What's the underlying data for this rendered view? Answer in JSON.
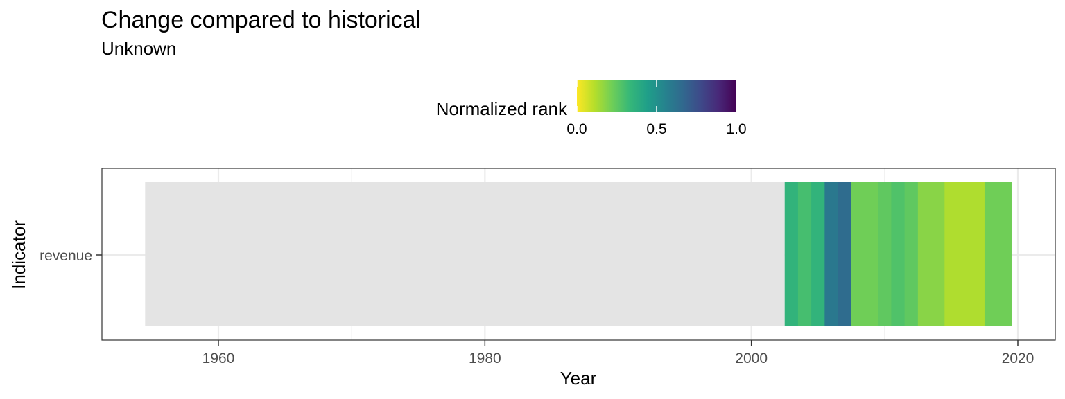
{
  "title": "Change compared to historical",
  "subtitle": "Unknown",
  "legend": {
    "title": "Normalized rank",
    "ticks": [
      "0.0",
      "0.5",
      "1.0"
    ],
    "range": [
      0,
      1
    ],
    "colormap": "viridis (reversed: 0 = yellow, 1 = purple)",
    "stops": [
      "#fde725",
      "#b5de2b",
      "#6ece58",
      "#35b779",
      "#1f9e89",
      "#26828e",
      "#31688e",
      "#3e4989",
      "#482878",
      "#440154"
    ]
  },
  "colors": {
    "missing": "#e4e4e4",
    "grid": "#ebebeb",
    "panel_border": "#333333"
  },
  "chart_data": {
    "type": "heatmap",
    "title": "Change compared to historical",
    "subtitle": "Unknown",
    "xlabel": "Year",
    "ylabel": "Indicator",
    "categories": [
      "revenue"
    ],
    "xlim": [
      1951,
      2019
    ],
    "x_ticks": [
      "1960",
      "1980",
      "2000",
      "2020"
    ],
    "y_ticks": [
      "revenue"
    ],
    "grid": true,
    "legend_position": "top",
    "missing_range": [
      1954.5,
      2002.5
    ],
    "series": [
      {
        "values": [
          {
            "x": 2003,
            "y": 0.35
          },
          {
            "x": 2004,
            "y": 0.3
          },
          {
            "x": 2005,
            "y": 0.35
          },
          {
            "x": 2006,
            "y": 0.6
          },
          {
            "x": 2007,
            "y": 0.65
          },
          {
            "x": 2008,
            "y": 0.22
          },
          {
            "x": 2009,
            "y": 0.22
          },
          {
            "x": 2010,
            "y": 0.25
          },
          {
            "x": 2011,
            "y": 0.28
          },
          {
            "x": 2012,
            "y": 0.25
          },
          {
            "x": 2013,
            "y": 0.18
          },
          {
            "x": 2014,
            "y": 0.18
          },
          {
            "x": 2015,
            "y": 0.12
          },
          {
            "x": 2016,
            "y": 0.12
          },
          {
            "x": 2017,
            "y": 0.12
          },
          {
            "x": 2018,
            "y": 0.22
          },
          {
            "x": 2019,
            "y": 0.22
          }
        ]
      }
    ]
  }
}
